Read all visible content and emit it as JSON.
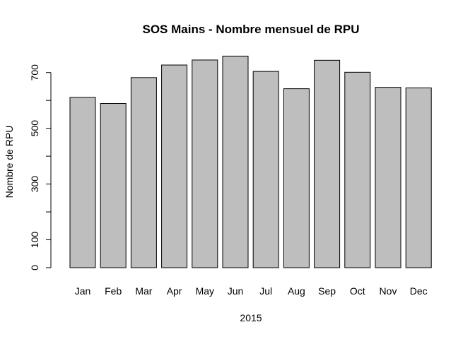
{
  "chart_data": {
    "type": "bar",
    "title": "SOS Mains - Nombre mensuel de RPU",
    "xlabel": "2015",
    "ylabel": "Nombre de RPU",
    "categories": [
      "Jan",
      "Feb",
      "Mar",
      "Apr",
      "May",
      "Jun",
      "Jul",
      "Aug",
      "Sep",
      "Oct",
      "Nov",
      "Dec"
    ],
    "values": [
      611,
      589,
      682,
      727,
      745,
      759,
      704,
      642,
      744,
      701,
      647,
      645
    ],
    "ylim": [
      0,
      760
    ],
    "yticks": [
      0,
      100,
      200,
      300,
      400,
      500,
      600,
      700
    ],
    "ytick_labels": [
      "0",
      "100",
      "",
      "300",
      "",
      "500",
      "",
      "700"
    ],
    "bar_color": "#bebebe",
    "grid": false,
    "legend": "none"
  }
}
